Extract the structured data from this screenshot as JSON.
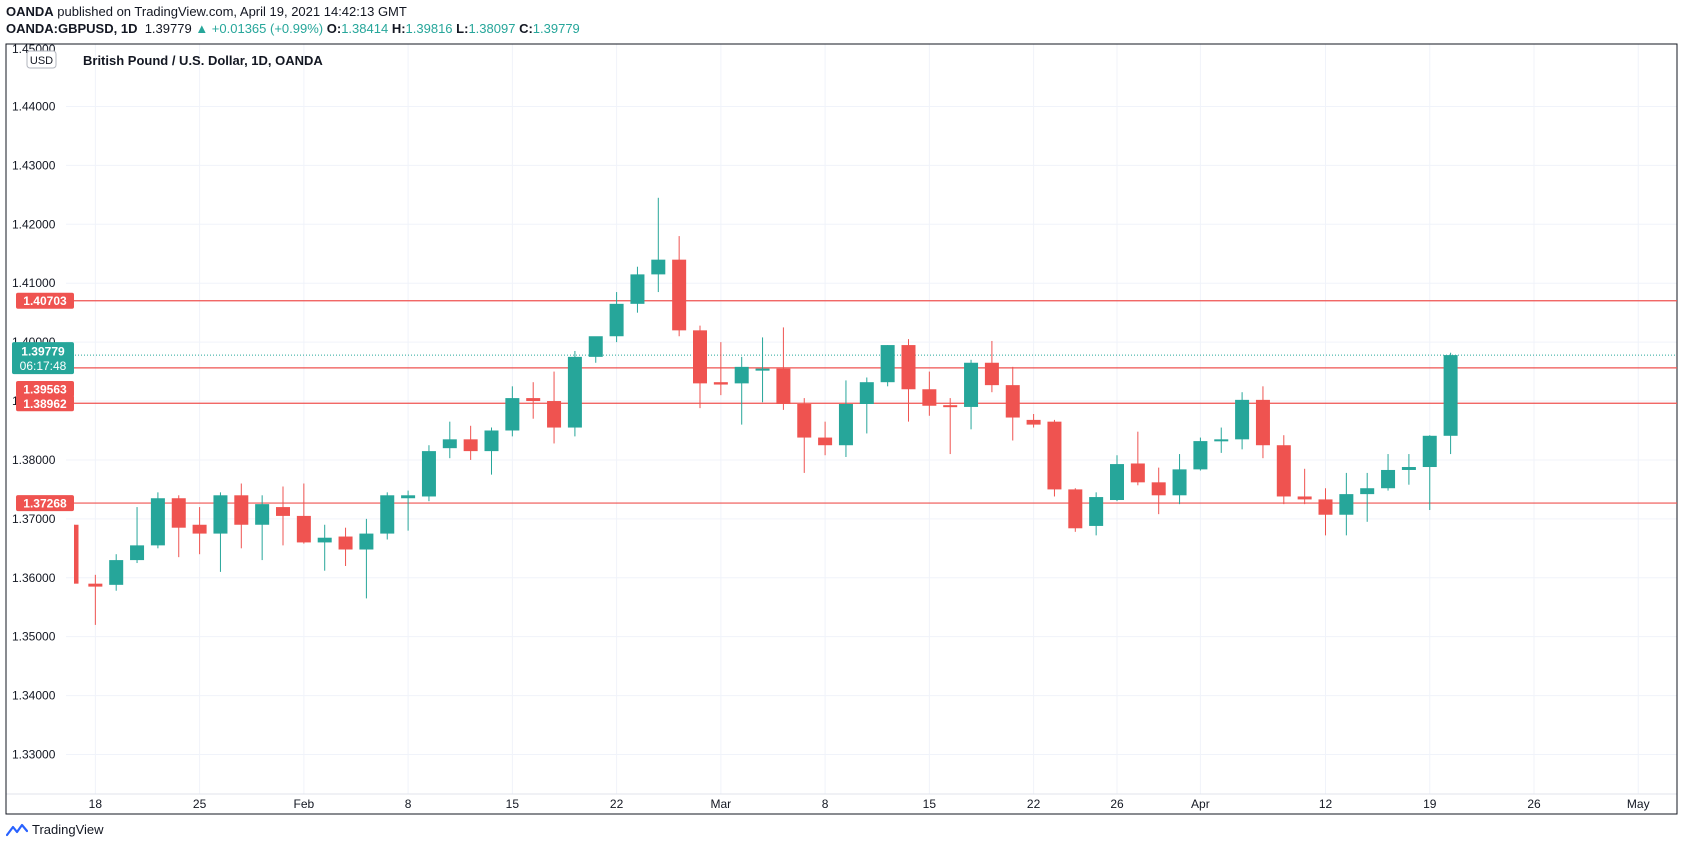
{
  "header": {
    "publisher": "OANDA",
    "published_text": "published on TradingView.com, April 19, 2021 14:42:13 GMT",
    "symbol": "OANDA:GBPUSD, 1D",
    "last": "1.39779",
    "change": "▲ +0.01365 (+0.99%)",
    "o_label": "O:",
    "o_val": "1.38414",
    "h_label": "H:",
    "h_val": "1.39816",
    "l_label": "L:",
    "l_val": "1.38097",
    "c_label": "C:",
    "c_val": "1.39779"
  },
  "footer": {
    "brand": "TradingView"
  },
  "colors": {
    "up": "#26a69a",
    "down": "#ef5350",
    "grid": "#f0f3fa",
    "level": "#ef5350"
  },
  "chart_data": {
    "type": "candlestick",
    "title": "British Pound / U.S. Dollar, 1D, OANDA",
    "currency_badge": "USD",
    "ylim": [
      1.3254,
      1.45
    ],
    "y_ticks": [
      1.33,
      1.34,
      1.35,
      1.36,
      1.37,
      1.38,
      1.39,
      1.4,
      1.41,
      1.42,
      1.43,
      1.44
    ],
    "y_tick_labels": [
      "1.33000",
      "1.34000",
      "1.35000",
      "1.36000",
      "1.37000",
      "1.38000",
      "1.39000",
      "1.40000",
      "1.41000",
      "1.42000",
      "1.43000",
      "1.44000"
    ],
    "top_partial_tick_label": "1.45000",
    "x_ticks": [
      {
        "label": "18",
        "index": 1
      },
      {
        "label": "25",
        "index": 6
      },
      {
        "label": "Feb",
        "index": 11
      },
      {
        "label": "8",
        "index": 16
      },
      {
        "label": "15",
        "index": 21
      },
      {
        "label": "22",
        "index": 26
      },
      {
        "label": "Mar",
        "index": 31
      },
      {
        "label": "8",
        "index": 36
      },
      {
        "label": "15",
        "index": 41
      },
      {
        "label": "22",
        "index": 46
      },
      {
        "label": "26",
        "index": 50
      },
      {
        "label": "Apr",
        "index": 54
      },
      {
        "label": "12",
        "index": 60
      },
      {
        "label": "19",
        "index": 65
      },
      {
        "label": "26",
        "index": 70
      },
      {
        "label": "May",
        "index": 75
      }
    ],
    "horizontal_levels": [
      {
        "value": 1.40703,
        "label": "1.40703"
      },
      {
        "value": 1.39563,
        "label": "1.39563"
      },
      {
        "value": 1.38962,
        "label": "1.38962"
      },
      {
        "value": 1.37268,
        "label": "1.37268"
      }
    ],
    "last_price": {
      "value": 1.39779,
      "label": "1.39779",
      "countdown": "06:17:48"
    },
    "candles": [
      {
        "o": 1.369,
        "h": 1.369,
        "l": 1.359,
        "c": 1.359
      },
      {
        "o": 1.359,
        "h": 1.3605,
        "l": 1.352,
        "c": 1.3585
      },
      {
        "o": 1.3588,
        "h": 1.364,
        "l": 1.3578,
        "c": 1.363
      },
      {
        "o": 1.363,
        "h": 1.372,
        "l": 1.3625,
        "c": 1.3655
      },
      {
        "o": 1.3655,
        "h": 1.3745,
        "l": 1.365,
        "c": 1.3735
      },
      {
        "o": 1.3735,
        "h": 1.374,
        "l": 1.3635,
        "c": 1.3685
      },
      {
        "o": 1.369,
        "h": 1.372,
        "l": 1.364,
        "c": 1.3675
      },
      {
        "o": 1.3675,
        "h": 1.3745,
        "l": 1.361,
        "c": 1.374
      },
      {
        "o": 1.374,
        "h": 1.376,
        "l": 1.365,
        "c": 1.369
      },
      {
        "o": 1.369,
        "h": 1.374,
        "l": 1.363,
        "c": 1.3725
      },
      {
        "o": 1.372,
        "h": 1.3755,
        "l": 1.3655,
        "c": 1.3705
      },
      {
        "o": 1.3705,
        "h": 1.376,
        "l": 1.3658,
        "c": 1.366
      },
      {
        "o": 1.366,
        "h": 1.369,
        "l": 1.3612,
        "c": 1.3668
      },
      {
        "o": 1.367,
        "h": 1.3685,
        "l": 1.362,
        "c": 1.3648
      },
      {
        "o": 1.3648,
        "h": 1.37,
        "l": 1.3565,
        "c": 1.3675
      },
      {
        "o": 1.3675,
        "h": 1.3745,
        "l": 1.3665,
        "c": 1.374
      },
      {
        "o": 1.3735,
        "h": 1.3748,
        "l": 1.368,
        "c": 1.374
      },
      {
        "o": 1.3738,
        "h": 1.3825,
        "l": 1.373,
        "c": 1.3815
      },
      {
        "o": 1.382,
        "h": 1.3865,
        "l": 1.3803,
        "c": 1.3835
      },
      {
        "o": 1.3835,
        "h": 1.3858,
        "l": 1.38,
        "c": 1.3815
      },
      {
        "o": 1.3815,
        "h": 1.3855,
        "l": 1.3775,
        "c": 1.385
      },
      {
        "o": 1.385,
        "h": 1.3925,
        "l": 1.384,
        "c": 1.3905
      },
      {
        "o": 1.3905,
        "h": 1.3932,
        "l": 1.387,
        "c": 1.39
      },
      {
        "o": 1.39,
        "h": 1.395,
        "l": 1.3828,
        "c": 1.3855
      },
      {
        "o": 1.3855,
        "h": 1.3985,
        "l": 1.384,
        "c": 1.3975
      },
      {
        "o": 1.3975,
        "h": 1.4005,
        "l": 1.3965,
        "c": 1.401
      },
      {
        "o": 1.401,
        "h": 1.4085,
        "l": 1.4,
        "c": 1.4065
      },
      {
        "o": 1.4065,
        "h": 1.4128,
        "l": 1.405,
        "c": 1.4115
      },
      {
        "o": 1.4115,
        "h": 1.4245,
        "l": 1.4085,
        "c": 1.414
      },
      {
        "o": 1.414,
        "h": 1.418,
        "l": 1.401,
        "c": 1.402
      },
      {
        "o": 1.402,
        "h": 1.4028,
        "l": 1.3888,
        "c": 1.393
      },
      {
        "o": 1.3932,
        "h": 1.4,
        "l": 1.391,
        "c": 1.3928
      },
      {
        "o": 1.393,
        "h": 1.3975,
        "l": 1.386,
        "c": 1.3958
      },
      {
        "o": 1.3955,
        "h": 1.4008,
        "l": 1.3898,
        "c": 1.3955
      },
      {
        "o": 1.3955,
        "h": 1.4025,
        "l": 1.3885,
        "c": 1.3895
      },
      {
        "o": 1.3895,
        "h": 1.3905,
        "l": 1.3778,
        "c": 1.3838
      },
      {
        "o": 1.3838,
        "h": 1.3865,
        "l": 1.3808,
        "c": 1.3825
      },
      {
        "o": 1.3825,
        "h": 1.3935,
        "l": 1.3805,
        "c": 1.3895
      },
      {
        "o": 1.3895,
        "h": 1.394,
        "l": 1.3845,
        "c": 1.3932
      },
      {
        "o": 1.3932,
        "h": 1.3995,
        "l": 1.3925,
        "c": 1.3995
      },
      {
        "o": 1.3995,
        "h": 1.4005,
        "l": 1.3865,
        "c": 1.392
      },
      {
        "o": 1.392,
        "h": 1.395,
        "l": 1.3875,
        "c": 1.3892
      },
      {
        "o": 1.3893,
        "h": 1.3905,
        "l": 1.381,
        "c": 1.389
      },
      {
        "o": 1.389,
        "h": 1.397,
        "l": 1.3852,
        "c": 1.3965
      },
      {
        "o": 1.3965,
        "h": 1.4002,
        "l": 1.3915,
        "c": 1.3927
      },
      {
        "o": 1.3927,
        "h": 1.3958,
        "l": 1.3833,
        "c": 1.3872
      },
      {
        "o": 1.3868,
        "h": 1.3878,
        "l": 1.3855,
        "c": 1.386
      },
      {
        "o": 1.3865,
        "h": 1.3868,
        "l": 1.3738,
        "c": 1.375
      },
      {
        "o": 1.375,
        "h": 1.3752,
        "l": 1.3678,
        "c": 1.3684
      },
      {
        "o": 1.3688,
        "h": 1.3745,
        "l": 1.3672,
        "c": 1.3737
      },
      {
        "o": 1.3732,
        "h": 1.3808,
        "l": 1.373,
        "c": 1.3793
      },
      {
        "o": 1.3794,
        "h": 1.3848,
        "l": 1.3757,
        "c": 1.3762
      },
      {
        "o": 1.3762,
        "h": 1.3787,
        "l": 1.3708,
        "c": 1.374
      },
      {
        "o": 1.374,
        "h": 1.381,
        "l": 1.3725,
        "c": 1.3784
      },
      {
        "o": 1.3784,
        "h": 1.3838,
        "l": 1.3782,
        "c": 1.3832
      },
      {
        "o": 1.3835,
        "h": 1.3855,
        "l": 1.3812,
        "c": 1.3835
      },
      {
        "o": 1.3835,
        "h": 1.3915,
        "l": 1.3818,
        "c": 1.3902
      },
      {
        "o": 1.3902,
        "h": 1.3925,
        "l": 1.3803,
        "c": 1.3825
      },
      {
        "o": 1.3825,
        "h": 1.3842,
        "l": 1.3725,
        "c": 1.3738
      },
      {
        "o": 1.3738,
        "h": 1.3785,
        "l": 1.3725,
        "c": 1.3733
      },
      {
        "o": 1.3733,
        "h": 1.3752,
        "l": 1.3672,
        "c": 1.3707
      },
      {
        "o": 1.3707,
        "h": 1.3778,
        "l": 1.3672,
        "c": 1.3742
      },
      {
        "o": 1.3742,
        "h": 1.3778,
        "l": 1.3695,
        "c": 1.3752
      },
      {
        "o": 1.3752,
        "h": 1.381,
        "l": 1.3748,
        "c": 1.3783
      },
      {
        "o": 1.3783,
        "h": 1.381,
        "l": 1.3758,
        "c": 1.3788
      },
      {
        "o": 1.3788,
        "h": 1.3842,
        "l": 1.3715,
        "c": 1.3841
      },
      {
        "o": 1.3841,
        "h": 1.3982,
        "l": 1.381,
        "c": 1.3978
      }
    ]
  }
}
